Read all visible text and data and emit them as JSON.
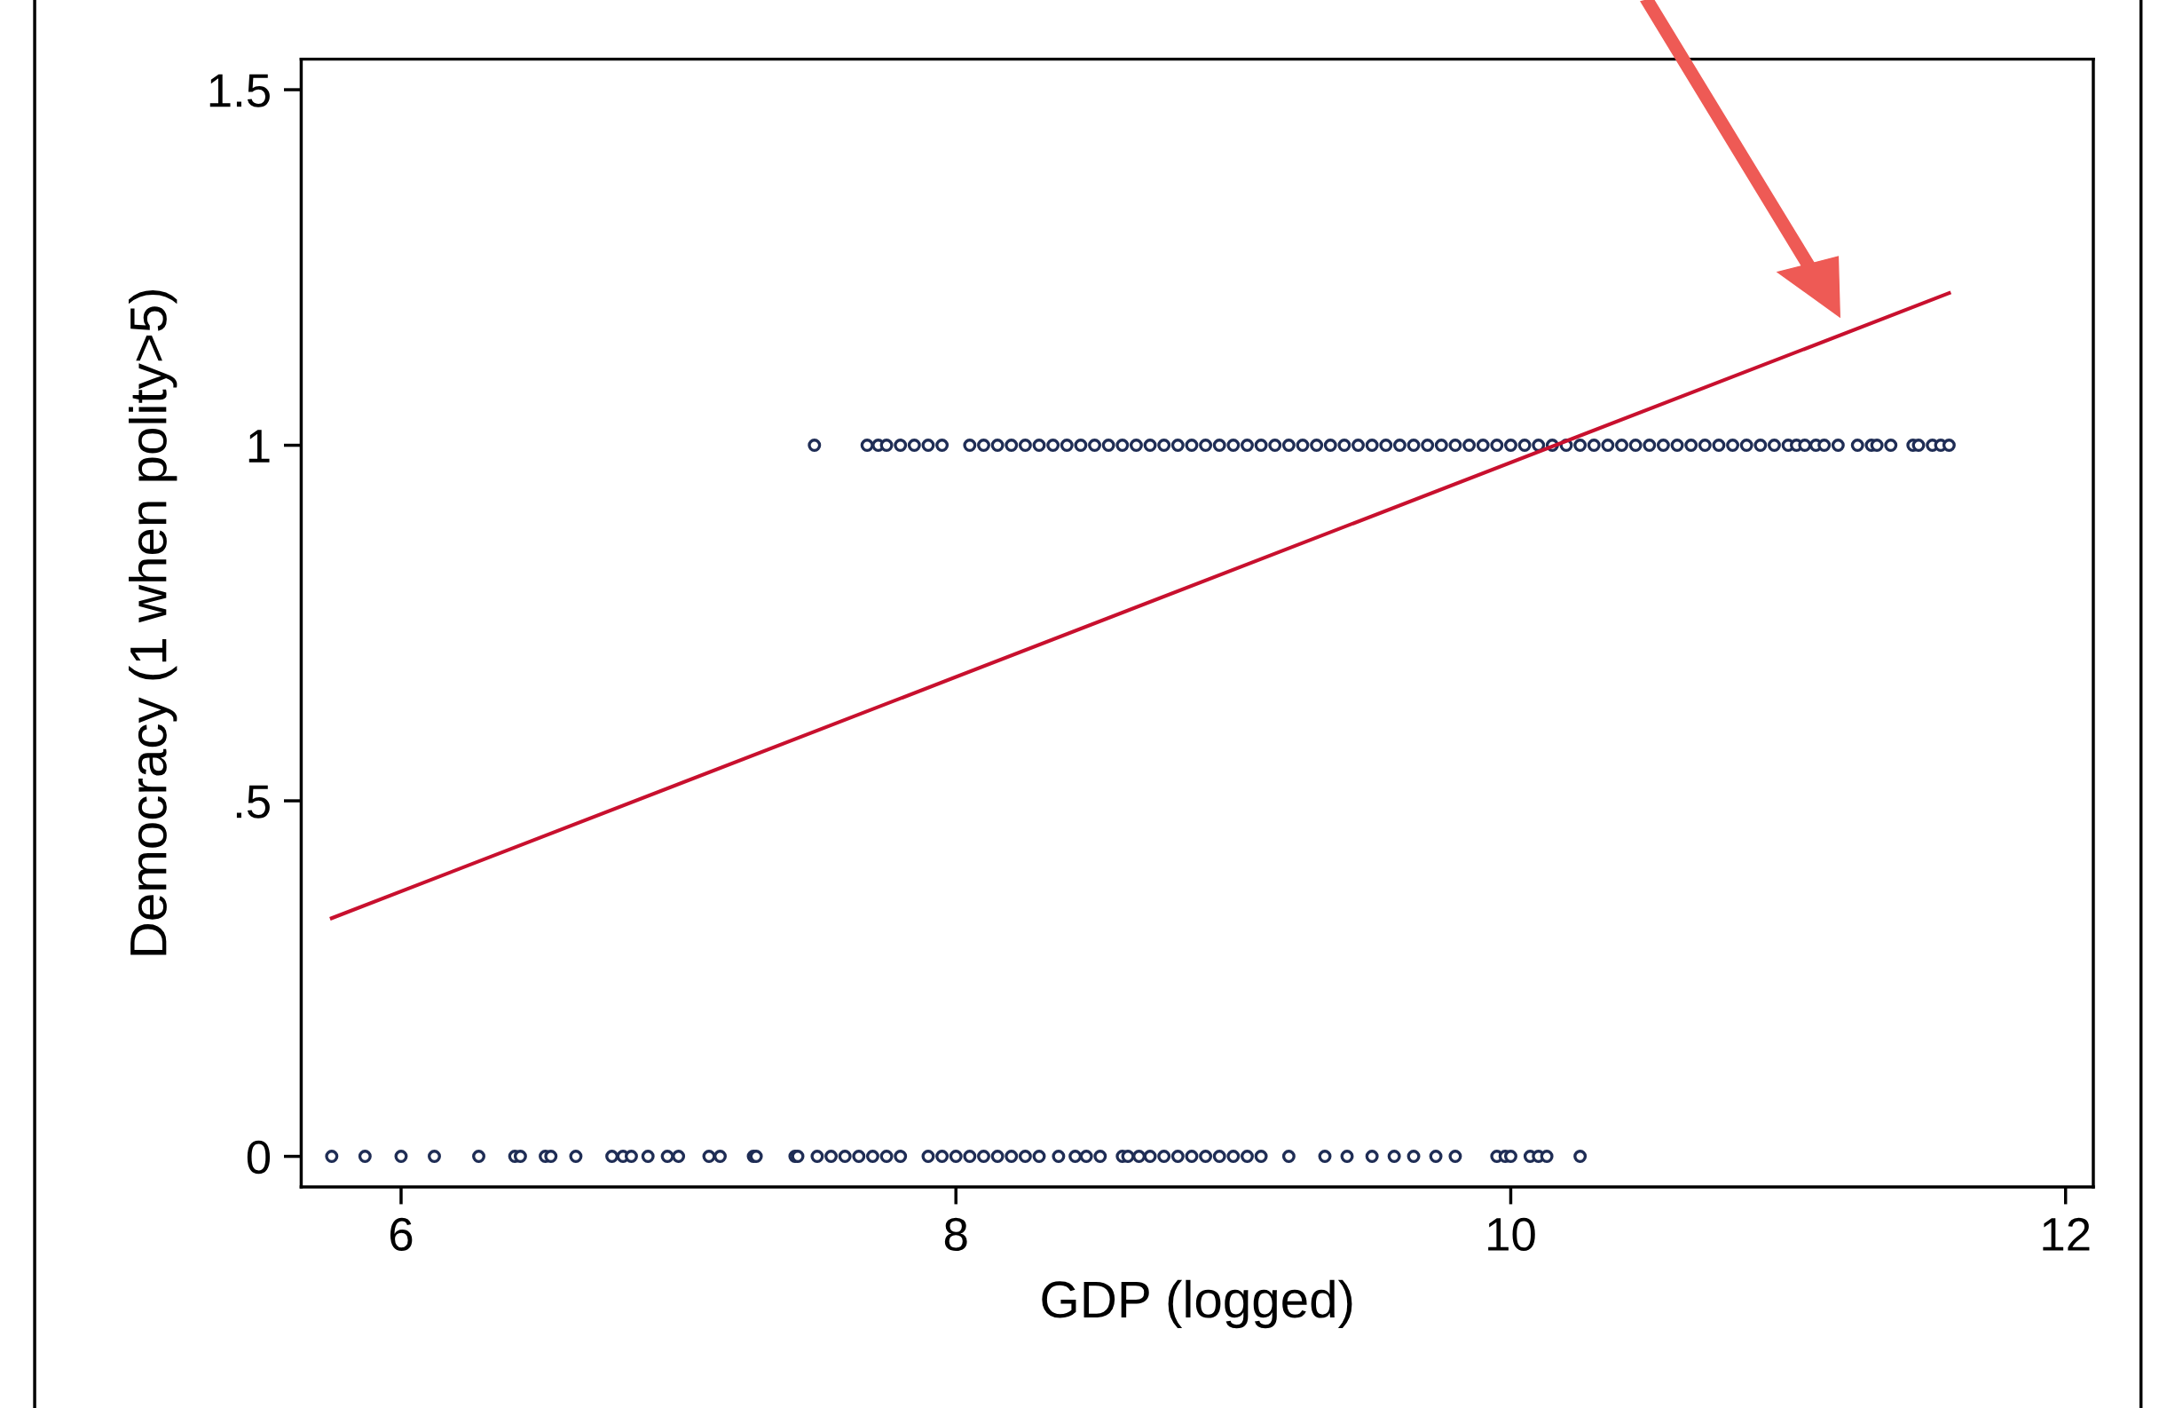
{
  "chart_data": {
    "type": "scatter",
    "xlabel": "GDP (logged)",
    "ylabel": "Democracy (1 when polity>5)",
    "xlim": [
      5.64,
      12.1
    ],
    "ylim": [
      -0.043,
      1.543
    ],
    "xticks": [
      6,
      8,
      10,
      12
    ],
    "yticks": [
      0,
      {
        "value": 0.5,
        "label": ".5"
      },
      1,
      1.5
    ],
    "grid": false,
    "legend": false,
    "series": [
      {
        "color": "#1f2d55",
        "marker": "circle",
        "x": [
          5.75,
          5.87,
          6.0,
          6.12,
          6.28,
          6.41,
          6.43,
          6.52,
          6.54,
          6.63,
          6.76,
          6.8,
          6.83,
          6.89,
          6.96,
          7.0,
          7.11,
          7.15,
          7.27,
          7.28,
          7.42,
          7.43,
          7.5,
          7.55,
          7.6,
          7.65,
          7.7,
          7.75,
          7.8,
          7.9,
          7.95,
          8.0,
          8.05,
          8.1,
          8.15,
          8.2,
          8.25,
          8.3,
          8.37,
          8.43,
          8.47,
          8.52,
          8.6,
          8.62,
          8.66,
          8.7,
          8.75,
          8.8,
          8.85,
          8.9,
          8.95,
          9.0,
          9.05,
          9.1,
          9.2,
          9.33,
          9.41,
          9.5,
          9.58,
          9.65,
          9.73,
          9.8,
          9.95,
          9.98,
          10.0,
          10.07,
          10.1,
          10.13,
          10.25
        ],
        "values": [
          0,
          0,
          0,
          0,
          0,
          0,
          0,
          0,
          0,
          0,
          0,
          0,
          0,
          0,
          0,
          0,
          0,
          0,
          0,
          0,
          0,
          0,
          0,
          0,
          0,
          0,
          0,
          0,
          0,
          0,
          0,
          0,
          0,
          0,
          0,
          0,
          0,
          0,
          0,
          0,
          0,
          0,
          0,
          0,
          0,
          0,
          0,
          0,
          0,
          0,
          0,
          0,
          0,
          0,
          0,
          0,
          0,
          0,
          0,
          0,
          0,
          0,
          0,
          0,
          0,
          0,
          0,
          0,
          0
        ]
      },
      {
        "color": "#1f2d55",
        "marker": "circle",
        "x": [
          7.49,
          7.68,
          7.72,
          7.75,
          7.8,
          7.85,
          7.9,
          7.95,
          8.05,
          8.1,
          8.15,
          8.2,
          8.25,
          8.3,
          8.35,
          8.4,
          8.45,
          8.5,
          8.55,
          8.6,
          8.65,
          8.7,
          8.75,
          8.8,
          8.85,
          8.9,
          8.95,
          9.0,
          9.05,
          9.1,
          9.15,
          9.2,
          9.25,
          9.3,
          9.35,
          9.4,
          9.45,
          9.5,
          9.55,
          9.6,
          9.65,
          9.7,
          9.75,
          9.8,
          9.85,
          9.9,
          9.95,
          10.0,
          10.05,
          10.1,
          10.15,
          10.2,
          10.25,
          10.3,
          10.35,
          10.4,
          10.45,
          10.5,
          10.55,
          10.6,
          10.65,
          10.7,
          10.75,
          10.8,
          10.85,
          10.9,
          10.95,
          11.0,
          11.03,
          11.06,
          11.1,
          11.13,
          11.18,
          11.25,
          11.3,
          11.32,
          11.37,
          11.45,
          11.47,
          11.52,
          11.55,
          11.58
        ],
        "values": [
          1,
          1,
          1,
          1,
          1,
          1,
          1,
          1,
          1,
          1,
          1,
          1,
          1,
          1,
          1,
          1,
          1,
          1,
          1,
          1,
          1,
          1,
          1,
          1,
          1,
          1,
          1,
          1,
          1,
          1,
          1,
          1,
          1,
          1,
          1,
          1,
          1,
          1,
          1,
          1,
          1,
          1,
          1,
          1,
          1,
          1,
          1,
          1,
          1,
          1,
          1,
          1,
          1,
          1,
          1,
          1,
          1,
          1,
          1,
          1,
          1,
          1,
          1,
          1,
          1,
          1,
          1,
          1,
          1,
          1,
          1,
          1,
          1,
          1,
          1,
          1,
          1,
          1,
          1,
          1,
          1,
          1
        ]
      },
      {
        "type": "line",
        "marker": "none",
        "color": "#c8102e",
        "x": [
          5.75,
          11.58
        ],
        "values": [
          0.335,
          1.214
        ]
      }
    ]
  }
}
